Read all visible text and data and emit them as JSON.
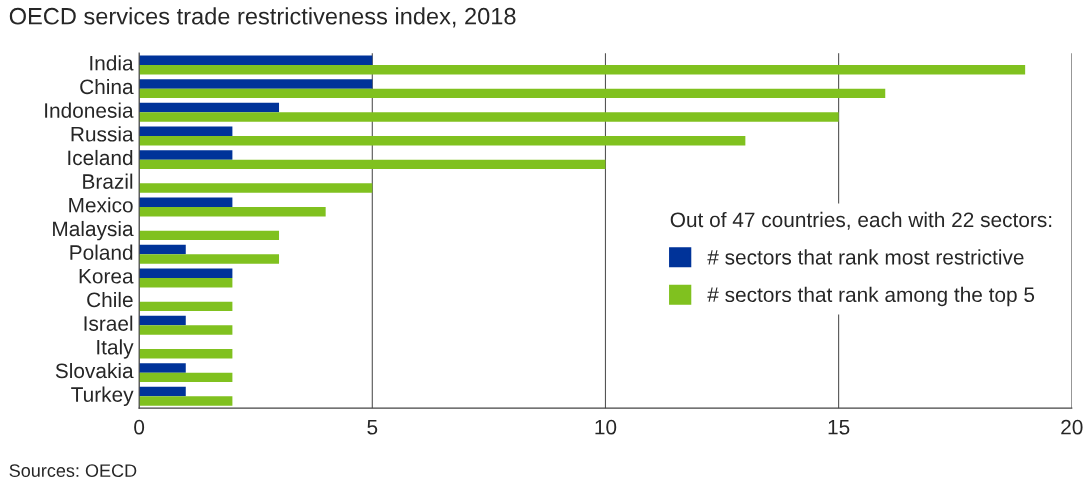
{
  "chart_data": {
    "type": "bar",
    "orientation": "horizontal",
    "title": "OECD services trade restrictiveness index, 2018",
    "categories": [
      "India",
      "China",
      "Indonesia",
      "Russia",
      "Iceland",
      "Brazil",
      "Mexico",
      "Malaysia",
      "Poland",
      "Korea",
      "Chile",
      "Israel",
      "Italy",
      "Slovakia",
      "Turkey"
    ],
    "series": [
      {
        "name": "# sectors that rank most restrictive",
        "color": "#003399",
        "values": [
          5,
          5,
          3,
          2,
          2,
          0,
          2,
          0,
          1,
          2,
          0,
          1,
          0,
          1,
          1
        ]
      },
      {
        "name": "# sectors that rank among the top 5",
        "color": "#80c11f",
        "values": [
          19,
          16,
          15,
          13,
          10,
          5,
          4,
          3,
          3,
          2,
          2,
          2,
          2,
          2,
          2
        ]
      }
    ],
    "legend_title": "Out of 47 countries, each with 22 sectors:",
    "legend": "right",
    "xlim": [
      0,
      20
    ],
    "xticks": [
      0,
      5,
      10,
      15,
      20
    ],
    "grid": "x",
    "annotations": [
      "Sources: OECD"
    ]
  }
}
